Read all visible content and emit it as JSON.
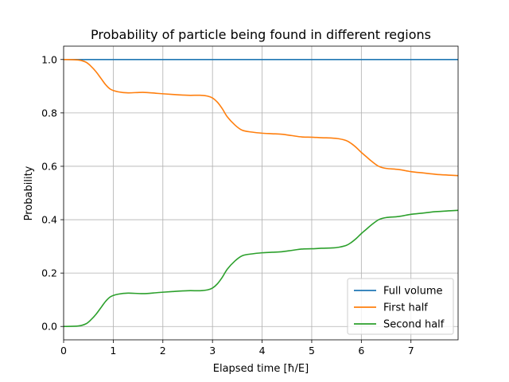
{
  "chart_data": {
    "type": "line",
    "title": "Probability of particle being found in different regions",
    "xlabel": "Elapsed time [ħ/E]",
    "ylabel": "Probability",
    "xlim": [
      0,
      7.95
    ],
    "ylim": [
      -0.05,
      1.05
    ],
    "xticks": [
      0,
      1,
      2,
      3,
      4,
      5,
      6,
      7
    ],
    "yticks": [
      0.0,
      0.2,
      0.4,
      0.6,
      0.8,
      1.0
    ],
    "xtick_labels": [
      "0",
      "1",
      "2",
      "3",
      "4",
      "5",
      "6",
      "7"
    ],
    "ytick_labels": [
      "0.0",
      "0.2",
      "0.4",
      "0.6",
      "0.8",
      "1.0"
    ],
    "grid": true,
    "legend_position": "lower-right",
    "series": [
      {
        "name": "Full volume",
        "color": "#1f77b4",
        "x": [
          0,
          7.95
        ],
        "y": [
          1.0,
          1.0
        ]
      },
      {
        "name": "First half",
        "color": "#ff7f0e",
        "x": [
          0,
          0.3,
          0.45,
          0.55,
          0.65,
          0.75,
          0.85,
          0.95,
          1.1,
          1.3,
          1.6,
          1.9,
          2.2,
          2.5,
          2.75,
          2.9,
          3.0,
          3.1,
          3.2,
          3.3,
          3.45,
          3.6,
          3.8,
          4.0,
          4.2,
          4.4,
          4.6,
          4.8,
          5.0,
          5.2,
          5.4,
          5.55,
          5.7,
          5.8,
          5.9,
          6.0,
          6.1,
          6.2,
          6.35,
          6.5,
          6.75,
          7.0,
          7.25,
          7.5,
          7.75,
          7.95
        ],
        "y": [
          1.0,
          0.998,
          0.99,
          0.975,
          0.955,
          0.93,
          0.905,
          0.888,
          0.879,
          0.875,
          0.877,
          0.873,
          0.869,
          0.866,
          0.866,
          0.863,
          0.856,
          0.84,
          0.815,
          0.785,
          0.755,
          0.735,
          0.728,
          0.724,
          0.722,
          0.72,
          0.715,
          0.71,
          0.709,
          0.707,
          0.706,
          0.703,
          0.696,
          0.685,
          0.67,
          0.652,
          0.636,
          0.62,
          0.6,
          0.592,
          0.588,
          0.58,
          0.575,
          0.57,
          0.567,
          0.565
        ]
      },
      {
        "name": "Second half",
        "color": "#2ca02c",
        "x": [
          0,
          0.3,
          0.45,
          0.55,
          0.65,
          0.75,
          0.85,
          0.95,
          1.1,
          1.3,
          1.6,
          1.9,
          2.2,
          2.5,
          2.75,
          2.9,
          3.0,
          3.1,
          3.2,
          3.3,
          3.45,
          3.6,
          3.8,
          4.0,
          4.2,
          4.4,
          4.6,
          4.8,
          5.0,
          5.2,
          5.4,
          5.55,
          5.7,
          5.8,
          5.9,
          6.0,
          6.1,
          6.2,
          6.35,
          6.5,
          6.75,
          7.0,
          7.25,
          7.5,
          7.75,
          7.95
        ],
        "y": [
          0.0,
          0.002,
          0.01,
          0.025,
          0.045,
          0.07,
          0.095,
          0.112,
          0.121,
          0.125,
          0.123,
          0.127,
          0.131,
          0.134,
          0.134,
          0.137,
          0.144,
          0.16,
          0.185,
          0.215,
          0.245,
          0.265,
          0.272,
          0.276,
          0.278,
          0.28,
          0.285,
          0.29,
          0.291,
          0.293,
          0.294,
          0.297,
          0.304,
          0.315,
          0.33,
          0.348,
          0.364,
          0.38,
          0.4,
          0.408,
          0.412,
          0.42,
          0.425,
          0.43,
          0.433,
          0.435
        ]
      }
    ]
  }
}
